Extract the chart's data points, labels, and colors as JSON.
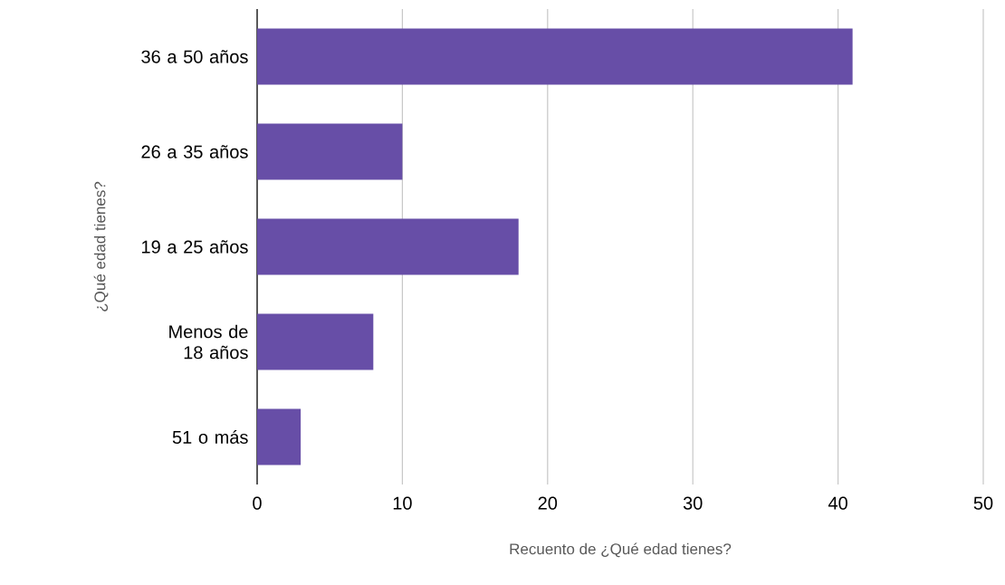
{
  "chart_data": {
    "type": "bar",
    "orientation": "horizontal",
    "xlabel": "Recuento de ¿Qué edad tienes?",
    "ylabel": "¿Qué edad tienes?",
    "categories": [
      "36 a 50 años",
      "26 a 35 años",
      "19 a 25 años",
      "Menos de 18 años",
      "51 o más"
    ],
    "values": [
      41,
      10,
      18,
      8,
      3
    ],
    "color": "#674ea7",
    "xlim": [
      0,
      50
    ],
    "xticks": [
      0,
      10,
      20,
      30,
      40,
      50
    ],
    "grid": "x"
  }
}
